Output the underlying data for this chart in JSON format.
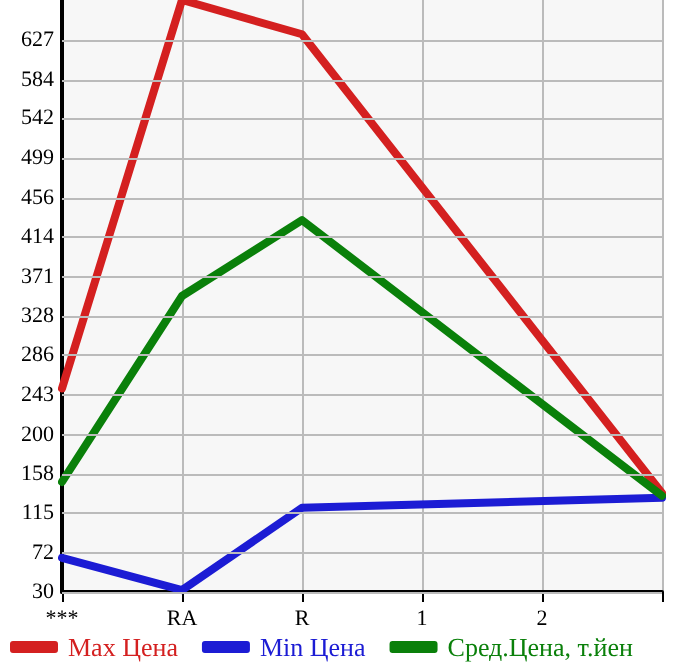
{
  "chart_data": {
    "type": "line",
    "categories": [
      "***",
      "RA",
      "R",
      "1",
      "2",
      null
    ],
    "series": [
      {
        "name": "Max Цена",
        "color": "#d42020",
        "values": [
          250,
          670,
          633,
          null,
          null,
          137
        ]
      },
      {
        "name": "Min Цена",
        "color": "#1c1cd4",
        "values": [
          67,
          32,
          121,
          null,
          null,
          132
        ]
      },
      {
        "name": "Сред.Цена, т.йен",
        "color": "#0a800a",
        "values": [
          149,
          350,
          432,
          null,
          null,
          134
        ]
      }
    ],
    "ylim": [
      30,
      670
    ],
    "yticks": [
      30,
      72,
      115,
      158,
      200,
      243,
      286,
      328,
      371,
      414,
      456,
      499,
      542,
      584,
      627
    ],
    "grid": true,
    "legend": "bottom",
    "marker": "none",
    "line_style": "solid"
  }
}
